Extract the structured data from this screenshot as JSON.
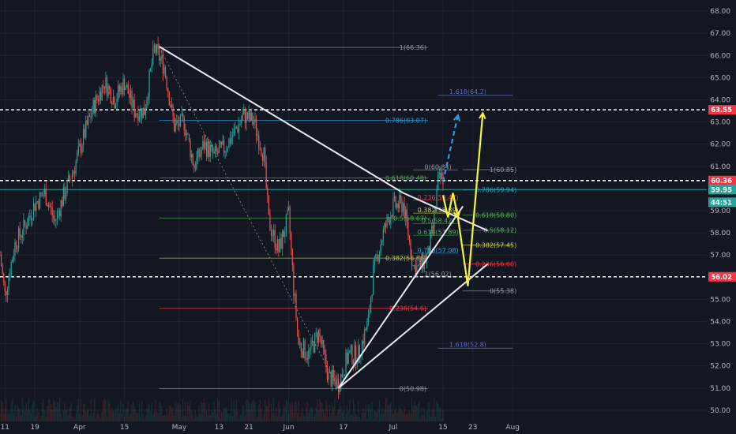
{
  "chart_data": {
    "type": "candlestick",
    "colors": {
      "background": "#131722",
      "grid": "#1f2330",
      "up": "#26a69a",
      "down": "#ef5350",
      "axis_text": "#b2b5be",
      "trendline": "#e8e8ee",
      "projection": "#f5f53a",
      "dashed_projection": "#2d9cdb",
      "level_line": "#ffffff"
    },
    "y_axis": {
      "range": [
        49.5,
        68.5
      ],
      "ticks": [
        "50.00",
        "51.00",
        "52.00",
        "53.00",
        "54.00",
        "55.00",
        "56.00",
        "57.00",
        "58.00",
        "59.00",
        "60.00",
        "61.00",
        "62.00",
        "63.00",
        "64.00",
        "65.00",
        "66.00",
        "67.00",
        "68.00"
      ]
    },
    "x_axis": {
      "range": [
        0,
        142
      ],
      "ticks": [
        {
          "label": "11",
          "day": 1
        },
        {
          "label": "19",
          "day": 7
        },
        {
          "label": "Apr",
          "day": 16
        },
        {
          "label": "15",
          "day": 25
        },
        {
          "label": "May",
          "day": 36
        },
        {
          "label": "13",
          "day": 44
        },
        {
          "label": "21",
          "day": 50
        },
        {
          "label": "Jun",
          "day": 58
        },
        {
          "label": "17",
          "day": 69
        },
        {
          "label": "Jul",
          "day": 79
        },
        {
          "label": "15",
          "day": 89
        },
        {
          "label": "23",
          "day": 95
        },
        {
          "label": "Aug",
          "day": 103
        }
      ]
    },
    "price_path": [
      {
        "day": 0,
        "price": 57.0
      },
      {
        "day": 1,
        "price": 55.2
      },
      {
        "day": 3,
        "price": 57.5
      },
      {
        "day": 5,
        "price": 58.3
      },
      {
        "day": 7,
        "price": 59.3
      },
      {
        "day": 9,
        "price": 59.8
      },
      {
        "day": 11,
        "price": 58.5
      },
      {
        "day": 13,
        "price": 59.8
      },
      {
        "day": 15,
        "price": 61.0
      },
      {
        "day": 17,
        "price": 62.5
      },
      {
        "day": 19,
        "price": 63.8
      },
      {
        "day": 21,
        "price": 64.8
      },
      {
        "day": 23,
        "price": 64.0
      },
      {
        "day": 25,
        "price": 64.8
      },
      {
        "day": 27,
        "price": 63.5
      },
      {
        "day": 29,
        "price": 63.5
      },
      {
        "day": 31,
        "price": 66.3
      },
      {
        "day": 33,
        "price": 65.5
      },
      {
        "day": 35,
        "price": 62.8
      },
      {
        "day": 37,
        "price": 63.0
      },
      {
        "day": 39,
        "price": 61.0
      },
      {
        "day": 41,
        "price": 62.0
      },
      {
        "day": 43,
        "price": 61.5
      },
      {
        "day": 45,
        "price": 61.8
      },
      {
        "day": 47,
        "price": 62.5
      },
      {
        "day": 49,
        "price": 63.3
      },
      {
        "day": 51,
        "price": 63.0
      },
      {
        "day": 53,
        "price": 61.5
      },
      {
        "day": 54,
        "price": 58.5
      },
      {
        "day": 56,
        "price": 57.2
      },
      {
        "day": 58,
        "price": 58.8
      },
      {
        "day": 59,
        "price": 55.5
      },
      {
        "day": 60,
        "price": 53.0
      },
      {
        "day": 62,
        "price": 52.5
      },
      {
        "day": 64,
        "price": 53.5
      },
      {
        "day": 66,
        "price": 51.5
      },
      {
        "day": 68,
        "price": 51.2
      },
      {
        "day": 70,
        "price": 52.5
      },
      {
        "day": 72,
        "price": 52.5
      },
      {
        "day": 74,
        "price": 54.0
      },
      {
        "day": 75,
        "price": 56.2
      },
      {
        "day": 77,
        "price": 58.0
      },
      {
        "day": 79,
        "price": 59.2
      },
      {
        "day": 81,
        "price": 59.3
      },
      {
        "day": 82,
        "price": 58.0
      },
      {
        "day": 83,
        "price": 56.5
      },
      {
        "day": 84,
        "price": 56.4
      },
      {
        "day": 86,
        "price": 57.0
      },
      {
        "day": 87,
        "price": 58.2
      },
      {
        "day": 88,
        "price": 60.3
      },
      {
        "day": 89,
        "price": 60.5
      }
    ],
    "horizontal_levels": [
      {
        "price": 63.55,
        "label": "63.55",
        "tag_color": "#f23645"
      },
      {
        "price": 60.36,
        "label": "60.36",
        "tag_color": "#f23645"
      },
      {
        "price": 56.02,
        "label": "56.02",
        "tag_color": "#f23645"
      }
    ],
    "price_tags": [
      {
        "price": 59.95,
        "label": "59.95",
        "color": "#26a69a"
      },
      {
        "price": 59.38,
        "label": "44:51",
        "color": "#26a69a"
      }
    ],
    "fib_levels_main": [
      {
        "price": 66.36,
        "label": "1(66.36)",
        "color": "#9598a1"
      },
      {
        "price": 63.07,
        "label": "0.786(63.07)",
        "color": "#2d9cdb"
      },
      {
        "price": 60.48,
        "label": "0.618(60.48)",
        "color": "#4caf50"
      },
      {
        "price": 58.67,
        "label": "0.5(58.67)",
        "color": "#4caf50"
      },
      {
        "price": 56.86,
        "label": "0.382(56.86)",
        "color": "#c8c84b"
      },
      {
        "price": 54.6,
        "label": "0.236(54.6)",
        "color": "#f23645"
      },
      {
        "price": 50.98,
        "label": "0(50.98)",
        "color": "#9598a1"
      }
    ],
    "fib_levels_right": [
      {
        "price": 60.85,
        "label": "1(60.85)",
        "color": "#9598a1"
      },
      {
        "price": 59.94,
        "label": "0.786(59.94)",
        "color": "#2d9cdb"
      },
      {
        "price": 58.8,
        "label": "0.618(58.80)",
        "color": "#4caf50"
      },
      {
        "price": 58.12,
        "label": "0.5(58.12)",
        "color": "#4caf50"
      },
      {
        "price": 57.45,
        "label": "0.382(57.45)",
        "color": "#c8c84b"
      },
      {
        "price": 56.6,
        "label": "0.236(56.60)",
        "color": "#f23645"
      },
      {
        "price": 55.38,
        "label": "0(55.38)",
        "color": "#9598a1"
      }
    ],
    "fib_levels_inner": [
      {
        "price": 60.84,
        "label": "0(60.84)",
        "color": "#9598a1"
      },
      {
        "price": 59.47,
        "label": "0.236(59.47)",
        "color": "#f23645"
      },
      {
        "price": 58.89,
        "label": "0.382(58.89)",
        "color": "#c8c84b"
      },
      {
        "price": 58.42,
        "label": "0.5(58.42)",
        "color": "#4caf50"
      },
      {
        "price": 57.89,
        "label": "0.618(57.89)",
        "color": "#4caf50"
      },
      {
        "price": 57.08,
        "label": "0.786(57.08)",
        "color": "#2d9cdb"
      },
      {
        "price": 56.02,
        "label": "1(56.02)",
        "color": "#9598a1"
      }
    ],
    "fib_extensions": [
      {
        "price": 64.2,
        "label": "1.618(64.2)",
        "color": "#5c6bc0"
      },
      {
        "price": 52.8,
        "label": "1.618(52.8)",
        "color": "#5c6bc0"
      }
    ],
    "trendlines": [
      {
        "from": {
          "day": 32,
          "price": 66.4
        },
        "to": {
          "day": 81,
          "price": 59.8
        }
      },
      {
        "from": {
          "day": 81,
          "price": 59.8
        },
        "to": {
          "day": 98,
          "price": 58.1
        }
      },
      {
        "from": {
          "day": 68,
          "price": 51.0
        },
        "to": {
          "day": 93,
          "price": 59.2
        }
      },
      {
        "from": {
          "day": 68,
          "price": 51.0
        },
        "to": {
          "day": 98,
          "price": 56.6
        }
      }
    ],
    "projections": [
      {
        "points": [
          {
            "day": 92,
            "price": 58.7
          },
          {
            "day": 94,
            "price": 55.6
          },
          {
            "day": 97,
            "price": 63.4
          }
        ],
        "style": "solid"
      },
      {
        "points": [
          {
            "day": 89,
            "price": 59.7
          },
          {
            "day": 90,
            "price": 58.7
          },
          {
            "day": 91,
            "price": 59.8
          },
          {
            "day": 92,
            "price": 58.7
          }
        ],
        "style": "solid"
      },
      {
        "points": [
          {
            "day": 89,
            "price": 60.3
          },
          {
            "day": 92,
            "price": 63.3
          }
        ],
        "style": "dashed"
      }
    ]
  }
}
